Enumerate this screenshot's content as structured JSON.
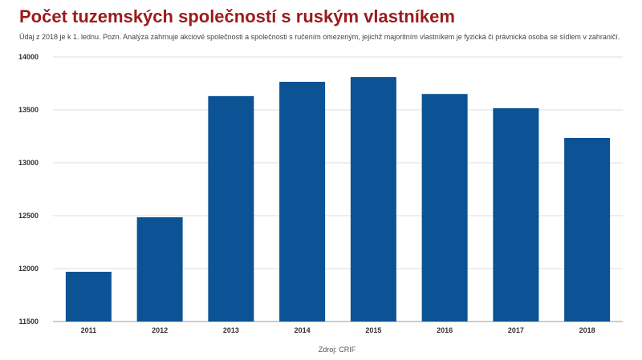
{
  "chart_data": {
    "type": "bar",
    "title": "Počet tuzemských společností s ruským vlastníkem",
    "subtitle": "Údaj z 2018 je k 1. lednu.   Pozn. Analýza zahrnuje akciové společnosti a společnosti s ručením omezeným, jejichž majoritním vlastníkem je fyzická či právnická osoba se sídlem v zahraničí.",
    "categories": [
      "2011",
      "2012",
      "2013",
      "2014",
      "2015",
      "2016",
      "2017",
      "2018"
    ],
    "values": [
      11970,
      12485,
      13630,
      13765,
      13810,
      13650,
      13515,
      13235
    ],
    "ylim": [
      11500,
      14000
    ],
    "yticks": [
      11500,
      12000,
      12500,
      13000,
      13500,
      14000
    ],
    "xlabel": "",
    "ylabel": "",
    "grid": true,
    "legend": "none",
    "bar_color": "#0b5394",
    "source": "Zdroj: CRIF"
  }
}
